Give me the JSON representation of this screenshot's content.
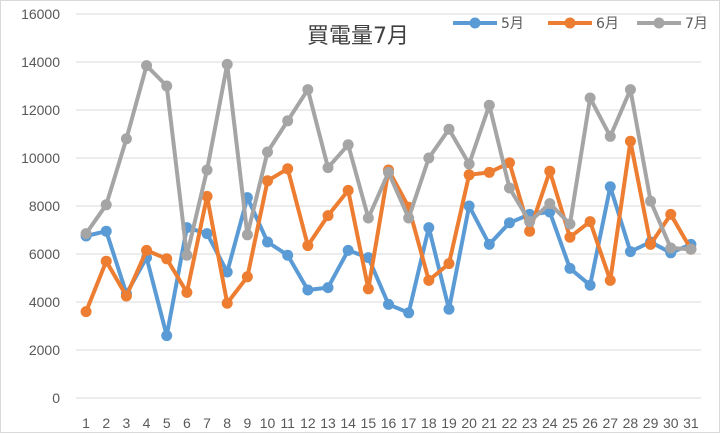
{
  "chart_data": {
    "type": "line",
    "title": "買電量7月",
    "xlabel": "",
    "ylabel": "",
    "categories": [
      "1",
      "2",
      "3",
      "4",
      "5",
      "6",
      "7",
      "8",
      "9",
      "10",
      "11",
      "12",
      "13",
      "14",
      "15",
      "16",
      "17",
      "18",
      "19",
      "20",
      "21",
      "22",
      "23",
      "24",
      "25",
      "26",
      "27",
      "28",
      "29",
      "30",
      "31"
    ],
    "ylim": [
      0,
      16000
    ],
    "yticks": [
      0,
      2000,
      4000,
      6000,
      8000,
      10000,
      12000,
      14000,
      16000
    ],
    "grid": true,
    "legend_position": "top-right",
    "series": [
      {
        "name": "5月",
        "color": "#5b9bd5",
        "values": [
          6750,
          6950,
          4350,
          5850,
          2600,
          7100,
          6850,
          5250,
          8350,
          6500,
          5950,
          4500,
          4600,
          6150,
          5850,
          3900,
          3550,
          7100,
          3700,
          8000,
          6400,
          7300,
          7650,
          7750,
          5400,
          4700,
          8800,
          6100,
          6500,
          6050,
          6400
        ]
      },
      {
        "name": "6月",
        "color": "#ed7d31",
        "values": [
          3600,
          5700,
          4250,
          6150,
          5800,
          4400,
          8400,
          3950,
          5050,
          9050,
          9550,
          6350,
          7600,
          8650,
          4550,
          9500,
          7950,
          4900,
          5600,
          9300,
          9400,
          9800,
          6950,
          9450,
          6700,
          7350,
          4900,
          10700,
          6400,
          7650,
          6200
        ]
      },
      {
        "name": "7月",
        "color": "#a5a5a5",
        "values": [
          6850,
          8050,
          10800,
          13850,
          13000,
          5950,
          9500,
          13900,
          6800,
          10250,
          11550,
          12850,
          9600,
          10550,
          7500,
          9400,
          7500,
          10000,
          11200,
          9750,
          12200,
          8750,
          7350,
          8100,
          7250,
          12500,
          10900,
          12850,
          8200,
          6250,
          6200
        ]
      }
    ]
  }
}
